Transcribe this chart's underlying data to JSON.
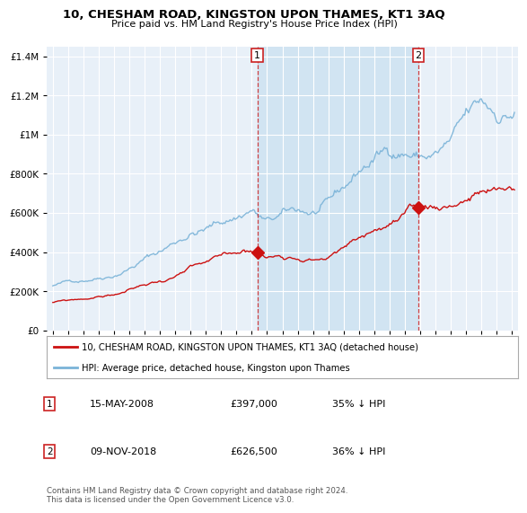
{
  "title": "10, CHESHAM ROAD, KINGSTON UPON THAMES, KT1 3AQ",
  "subtitle": "Price paid vs. HM Land Registry's House Price Index (HPI)",
  "background_color": "#ffffff",
  "plot_bg_color": "#e8f0f8",
  "hpi_color": "#7ab3d8",
  "price_color": "#cc1111",
  "shade_color": "#d0e4f5",
  "ylim": [
    0,
    1450000
  ],
  "yticks": [
    0,
    200000,
    400000,
    600000,
    800000,
    1000000,
    1200000,
    1400000
  ],
  "sale1_x": 2008.37,
  "sale1_y": 397000,
  "sale1_label": "1",
  "sale2_x": 2018.88,
  "sale2_y": 626500,
  "sale2_label": "2",
  "legend_line1": "10, CHESHAM ROAD, KINGSTON UPON THAMES, KT1 3AQ (detached house)",
  "legend_line2": "HPI: Average price, detached house, Kingston upon Thames",
  "note1_num": "1",
  "note1_date": "15-MAY-2008",
  "note1_price": "£397,000",
  "note1_hpi": "35% ↓ HPI",
  "note2_num": "2",
  "note2_date": "09-NOV-2018",
  "note2_price": "£626,500",
  "note2_hpi": "36% ↓ HPI",
  "footer": "Contains HM Land Registry data © Crown copyright and database right 2024.\nThis data is licensed under the Open Government Licence v3.0.",
  "xlim_left": 1994.6,
  "xlim_right": 2025.4
}
